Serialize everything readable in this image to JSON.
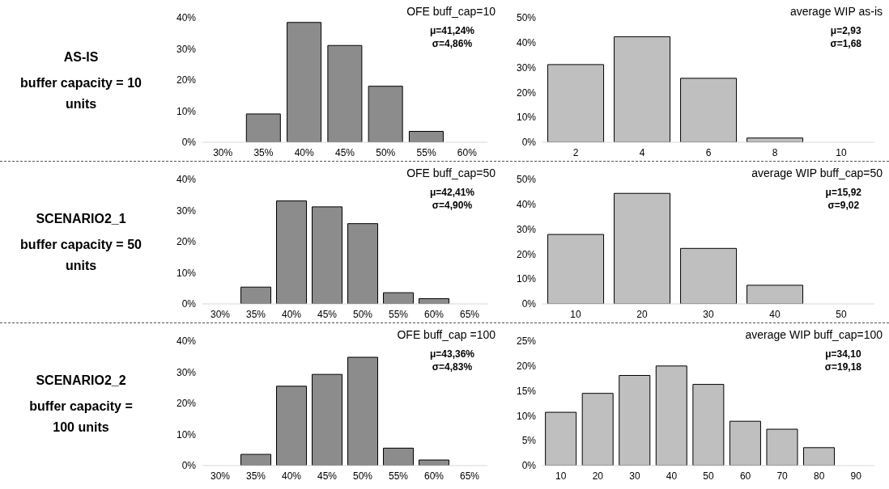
{
  "chart_data": [
    {
      "type": "other",
      "title": "AS-IS",
      "annotations": [
        "buffer capacity = 10 units"
      ]
    },
    {
      "type": "bar",
      "title": "OFE buff_cap=10",
      "categories": [
        "30%",
        "35%",
        "40%",
        "45%",
        "50%",
        "55%",
        "60%"
      ],
      "values": [
        0,
        9.1,
        38.5,
        31.1,
        18.0,
        3.5,
        0
      ],
      "color": "#8c8c8c",
      "ylim": [
        0,
        40
      ],
      "yticks": [
        {
          "value": 0,
          "label": "0%"
        },
        {
          "value": 10,
          "label": "10%"
        },
        {
          "value": 20,
          "label": "20%"
        },
        {
          "value": 30,
          "label": "30%"
        },
        {
          "value": 40,
          "label": "40%"
        }
      ],
      "annotations": [
        "μ=41,24%",
        "σ=4,86%"
      ]
    },
    {
      "type": "bar",
      "title": "average WIP as-is",
      "categories": [
        "2",
        "4",
        "6",
        "8",
        "10"
      ],
      "values": [
        31.2,
        42.4,
        25.7,
        1.7,
        0
      ],
      "color": "#bfbfbf",
      "ylim": [
        0,
        50
      ],
      "yticks": [
        {
          "value": 0,
          "label": "0%"
        },
        {
          "value": 10,
          "label": "10%"
        },
        {
          "value": 20,
          "label": "20%"
        },
        {
          "value": 30,
          "label": "30%"
        },
        {
          "value": 40,
          "label": "40%"
        },
        {
          "value": 50,
          "label": "50%"
        }
      ],
      "annotations": [
        "μ=2,93",
        "σ=1,68"
      ]
    },
    {
      "type": "other",
      "title": "SCENARIO2_1",
      "annotations": [
        "buffer capacity = 50 units"
      ]
    },
    {
      "type": "bar",
      "title": "OFE buff_cap=50",
      "categories": [
        "30%",
        "35%",
        "40%",
        "45%",
        "50%",
        "55%",
        "60%",
        "65%"
      ],
      "values": [
        0,
        5.4,
        33.1,
        31.2,
        25.8,
        3.6,
        1.7,
        0
      ],
      "color": "#8c8c8c",
      "ylim": [
        0,
        40
      ],
      "yticks": [
        {
          "value": 0,
          "label": "0%"
        },
        {
          "value": 10,
          "label": "10%"
        },
        {
          "value": 20,
          "label": "20%"
        },
        {
          "value": 30,
          "label": "30%"
        },
        {
          "value": 40,
          "label": "40%"
        }
      ],
      "annotations": [
        "μ=42,41%",
        "σ=4,90%"
      ]
    },
    {
      "type": "bar",
      "title": "average WIP buff_cap=50",
      "categories": [
        "10",
        "20",
        "30",
        "40",
        "50"
      ],
      "values": [
        27.9,
        44.4,
        22.3,
        7.5,
        0
      ],
      "color": "#bfbfbf",
      "ylim": [
        0,
        50
      ],
      "yticks": [
        {
          "value": 0,
          "label": "0%"
        },
        {
          "value": 10,
          "label": "10%"
        },
        {
          "value": 20,
          "label": "20%"
        },
        {
          "value": 30,
          "label": "30%"
        },
        {
          "value": 40,
          "label": "40%"
        },
        {
          "value": 50,
          "label": "50%"
        }
      ],
      "annotations": [
        "μ=15,92",
        "σ=9,02"
      ]
    },
    {
      "type": "other",
      "title": "SCENARIO2_2",
      "annotations": [
        "buffer capacity = 100 units"
      ]
    },
    {
      "type": "bar",
      "title": "OFE buff_cap =100",
      "categories": [
        "30%",
        "35%",
        "40%",
        "45%",
        "50%",
        "55%",
        "60%",
        "65%"
      ],
      "values": [
        0,
        3.6,
        25.5,
        29.3,
        34.8,
        5.6,
        1.8,
        0
      ],
      "color": "#8c8c8c",
      "ylim": [
        0,
        40
      ],
      "yticks": [
        {
          "value": 0,
          "label": "0%"
        },
        {
          "value": 10,
          "label": "10%"
        },
        {
          "value": 20,
          "label": "20%"
        },
        {
          "value": 30,
          "label": "30%"
        },
        {
          "value": 40,
          "label": "40%"
        }
      ],
      "annotations": [
        "μ=43,36%",
        "σ=4,83%"
      ]
    },
    {
      "type": "bar",
      "title": "average WIP buff_cap=100",
      "categories": [
        "10",
        "20",
        "30",
        "40",
        "50",
        "60",
        "70",
        "80",
        "90"
      ],
      "values": [
        10.7,
        14.5,
        18.1,
        20.0,
        16.3,
        8.9,
        7.3,
        3.6,
        0
      ],
      "color": "#bfbfbf",
      "ylim": [
        0,
        25
      ],
      "yticks": [
        {
          "value": 0,
          "label": "0%"
        },
        {
          "value": 5,
          "label": "5%"
        },
        {
          "value": 10,
          "label": "10%"
        },
        {
          "value": 15,
          "label": "15%"
        },
        {
          "value": 20,
          "label": "20%"
        },
        {
          "value": 25,
          "label": "25%"
        }
      ],
      "annotations": [
        "μ=34,10",
        "σ=19,18"
      ]
    }
  ]
}
